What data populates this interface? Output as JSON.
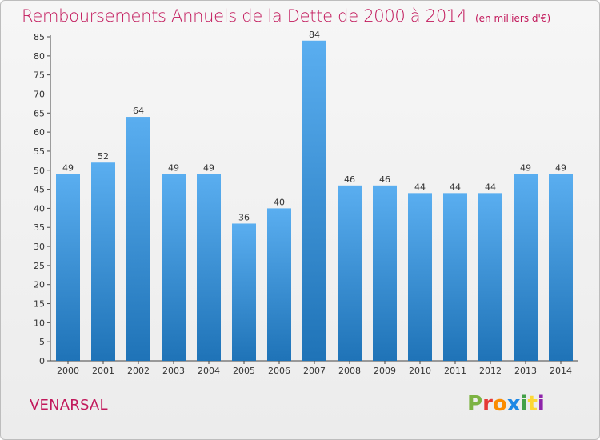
{
  "chart_data": {
    "type": "bar",
    "title": "Remboursements Annuels de la Dette de 2000 à 2014",
    "subtitle": "(en milliers d'€)",
    "xlabel": "",
    "ylabel": "",
    "categories": [
      "2000",
      "2001",
      "2002",
      "2003",
      "2004",
      "2005",
      "2006",
      "2007",
      "2008",
      "2009",
      "2010",
      "2011",
      "2012",
      "2013",
      "2014"
    ],
    "values": [
      49,
      52,
      64,
      49,
      49,
      36,
      40,
      84,
      46,
      46,
      44,
      44,
      44,
      49,
      49
    ],
    "ylim": [
      0,
      85
    ],
    "yticks": [
      0,
      5,
      10,
      15,
      20,
      25,
      30,
      35,
      40,
      45,
      50,
      55,
      60,
      65,
      70,
      75,
      80,
      85
    ],
    "grid": false,
    "legend": "none",
    "bar_color_top": "#5aaef0",
    "bar_color_bottom": "#1f73b7"
  },
  "footer": {
    "location": "VENARSAL",
    "brand": "Proxiti",
    "brand_colors": [
      "#7cb342",
      "#e53935",
      "#fb8c00",
      "#1e88e5",
      "#43a047",
      "#fdd835",
      "#8e24aa"
    ]
  }
}
